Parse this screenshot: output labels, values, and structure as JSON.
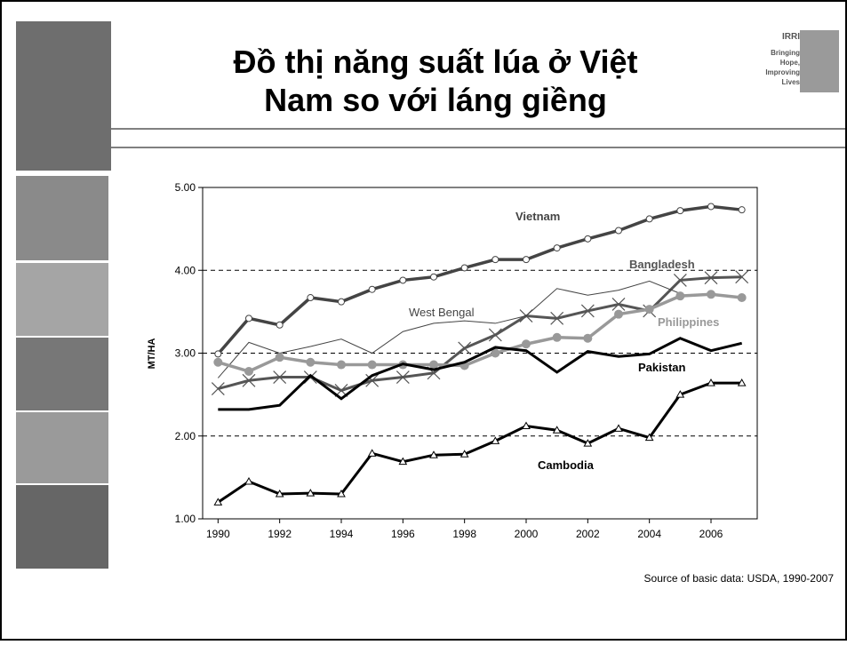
{
  "header": {
    "title": [
      "Đồ thị năng suất lúa ở Việt",
      "Nam so với láng giềng"
    ],
    "logo": [
      "IRRI",
      "Bringing",
      "Hope,",
      "Improving",
      "Lives"
    ]
  },
  "chart_data": {
    "type": "line",
    "ylabel": "MT/HA",
    "x": [
      1990,
      1991,
      1992,
      1993,
      1994,
      1995,
      1996,
      1997,
      1998,
      1999,
      2000,
      2001,
      2002,
      2003,
      2004,
      2005,
      2006,
      2007
    ],
    "xlim": [
      1989.5,
      2007.5
    ],
    "xticks": [
      1990,
      1992,
      1994,
      1996,
      1998,
      2000,
      2002,
      2004,
      2006
    ],
    "ylim": [
      1,
      5
    ],
    "yticks": [
      {
        "value": 1,
        "label": "1.00"
      },
      {
        "value": 2,
        "label": "2.00"
      },
      {
        "value": 3,
        "label": "3.00"
      },
      {
        "value": 4,
        "label": "4.00"
      },
      {
        "value": 5,
        "label": "5.00"
      }
    ],
    "grid": true,
    "series": [
      {
        "name": "Vietnam",
        "color": "#444444",
        "marker": "circle-open",
        "values": [
          2.99,
          3.42,
          3.34,
          3.67,
          3.62,
          3.77,
          3.88,
          3.92,
          4.03,
          4.13,
          4.13,
          4.27,
          4.38,
          4.48,
          4.62,
          4.72,
          4.77,
          4.73
        ]
      },
      {
        "name": "Bangladesh",
        "color": "#555555",
        "marker": "x",
        "values": [
          2.57,
          2.67,
          2.71,
          2.71,
          2.55,
          2.67,
          2.71,
          2.76,
          3.06,
          3.22,
          3.45,
          3.42,
          3.51,
          3.59,
          3.51,
          3.88,
          3.91,
          3.92
        ]
      },
      {
        "name": "West Bengal",
        "color": "#444444",
        "marker": "none",
        "values": [
          2.7,
          3.13,
          3.0,
          3.08,
          3.17,
          3.0,
          3.26,
          3.36,
          3.39,
          3.36,
          3.45,
          3.78,
          3.7,
          3.76,
          3.87,
          3.72,
          null,
          null
        ]
      },
      {
        "name": "Philippines",
        "color": "#999999",
        "marker": "circle",
        "values": [
          2.89,
          2.78,
          2.95,
          2.89,
          2.86,
          2.86,
          2.86,
          2.86,
          2.85,
          3.0,
          3.11,
          3.19,
          3.18,
          3.47,
          3.53,
          3.69,
          3.71,
          3.67
        ]
      },
      {
        "name": "Pakistan",
        "color": "#000000",
        "marker": "none",
        "values": [
          2.32,
          2.32,
          2.37,
          2.73,
          2.45,
          2.73,
          2.87,
          2.8,
          2.89,
          3.07,
          3.03,
          2.77,
          3.02,
          2.96,
          2.99,
          3.18,
          3.03,
          3.12
        ]
      },
      {
        "name": "Cambodia",
        "color": "#000000",
        "marker": "triangle",
        "values": [
          1.2,
          1.45,
          1.3,
          1.31,
          1.3,
          1.79,
          1.69,
          1.77,
          1.78,
          1.94,
          2.12,
          2.07,
          1.91,
          2.09,
          1.98,
          2.5,
          2.64,
          2.64
        ]
      }
    ]
  },
  "source": "Source of basic data: USDA, 1990-2007"
}
